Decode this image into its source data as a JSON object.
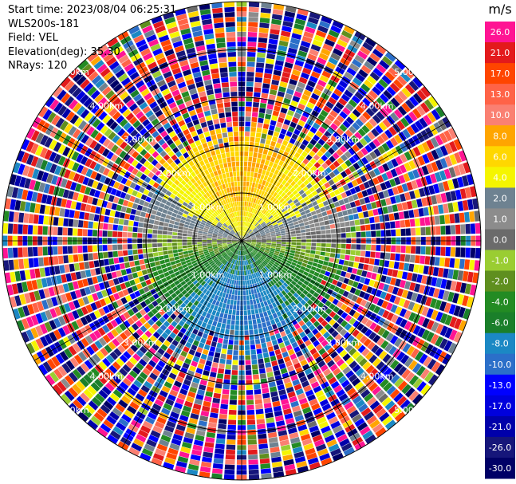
{
  "header": {
    "start_time": "Start time: 2023/08/04 06:25:31",
    "site": "WLS200s-181",
    "field": "Field: VEL",
    "elevation": "Elevation(deg): 35.30",
    "nrays": "NRays: 120"
  },
  "chart_data": {
    "type": "heatmap",
    "projection": "polar-ppi",
    "field": "VEL",
    "nrays": 120,
    "range_rings_km": [
      1.0,
      2.0,
      3.0,
      4.0,
      5.0
    ],
    "max_range_km": 5.0,
    "range_gates": 48,
    "ring_labels": [
      "1.00km",
      "2.00km",
      "3.00km",
      "4.00km",
      "5.00km"
    ],
    "grid": true,
    "colorbar": {
      "unit": "m/s",
      "placement": "right",
      "tick_labels": [
        "26.0",
        "21.0",
        "17.0",
        "13.0",
        "10.0",
        "8.0",
        "6.0",
        "4.0",
        "2.0",
        "1.0",
        "0.0",
        "-1.0",
        "-2.0",
        "-4.0",
        "-6.0",
        "-8.0",
        "-10.0",
        "-13.0",
        "-17.0",
        "-21.0",
        "-26.0",
        "-30.0"
      ],
      "bin_edges": [
        -30,
        -26,
        -21,
        -17,
        -13,
        -10,
        -8,
        -6,
        -4,
        -2,
        -1,
        0,
        1,
        2,
        4,
        6,
        8,
        10,
        13,
        17,
        21,
        26,
        30
      ],
      "colors": [
        "#000066",
        "#16167a",
        "#0000aa",
        "#0000dd",
        "#0000ff",
        "#2b6fc9",
        "#1b88c4",
        "#1a7f2a",
        "#238b23",
        "#5f8f1f",
        "#9acd32",
        "#6b6b6b",
        "#8c8c8c",
        "#6e8291",
        "#f5f500",
        "#ffd700",
        "#ffa500",
        "#fa8072",
        "#ff6347",
        "#ff4500",
        "#e31a1c",
        "#ff1493"
      ]
    },
    "wind_pattern": {
      "toward_direction_deg": 0,
      "peak_velocity_ms": 8.0,
      "noise_start_km": 1.8,
      "full_noise_km": 2.6
    }
  }
}
